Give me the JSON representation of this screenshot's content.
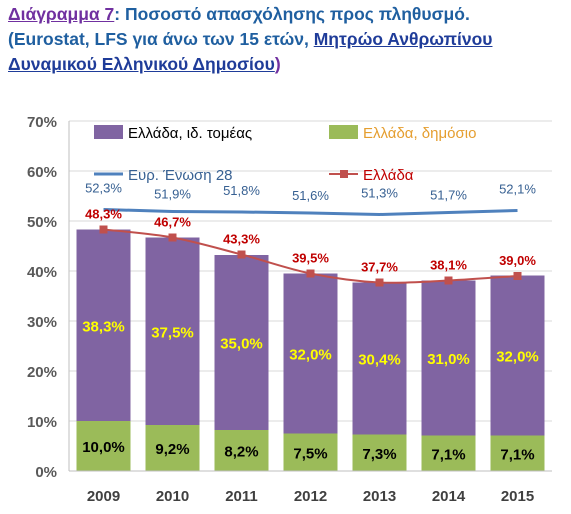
{
  "title": {
    "lead": "Διάγραμμα 7",
    "colon": ":",
    "rest": " Ποσοστό απασχόλησης προς πληθυσμό.",
    "line2_start": "(Eurostat, LFS για άνω των 15 ετών, ",
    "link": "Μητρώο Ανθρωπίνου Δυναμικού Ελληνικού Δημοσίου",
    "close": ")"
  },
  "colors": {
    "private": "#8064a2",
    "public": "#9bbb59",
    "eu": "#4f81bd",
    "greece": "#c0504d",
    "private_label": "#ffff00",
    "eu_label": "#376092",
    "greece_label": "#c00000"
  },
  "chart_data": {
    "type": "bar",
    "categories": [
      "2009",
      "2010",
      "2011",
      "2012",
      "2013",
      "2014",
      "2015"
    ],
    "ylim": [
      0,
      70
    ],
    "yticks": [
      "0%",
      "10%",
      "20%",
      "30%",
      "40%",
      "50%",
      "60%",
      "70%"
    ],
    "stacked": true,
    "grid": true,
    "series": [
      {
        "name": "Ελλάδα, δημόσιο",
        "kind": "bar",
        "values": [
          10.0,
          9.2,
          8.2,
          7.5,
          7.3,
          7.1,
          7.1
        ],
        "labels": [
          "10,0%",
          "9,2%",
          "8,2%",
          "7,5%",
          "7,3%",
          "7,1%",
          "7,1%"
        ]
      },
      {
        "name": "Ελλάδα, ιδ. τομέας",
        "kind": "bar",
        "values": [
          38.3,
          37.5,
          35.0,
          32.0,
          30.4,
          31.0,
          32.0
        ],
        "labels": [
          "38,3%",
          "37,5%",
          "35,0%",
          "32,0%",
          "30,4%",
          "31,0%",
          "32,0%"
        ]
      },
      {
        "name": "Ευρ. Ένωση 28",
        "kind": "line",
        "values": [
          52.3,
          51.9,
          51.8,
          51.6,
          51.3,
          51.7,
          52.1
        ],
        "labels": [
          "52,3%",
          "51,9%",
          "51,8%",
          "51,6%",
          "51,3%",
          "51,7%",
          "52,1%"
        ]
      },
      {
        "name": "Ελλάδα",
        "kind": "line",
        "values": [
          48.3,
          46.7,
          43.3,
          39.5,
          37.7,
          38.1,
          39.0
        ],
        "labels": [
          "48,3%",
          "46,7%",
          "43,3%",
          "39,5%",
          "37,7%",
          "38,1%",
          "39,0%"
        ]
      }
    ],
    "legend": [
      "Ελλάδα, ιδ. τομέας",
      "Ελλάδα, δημόσιο",
      "Ευρ. Ένωση 28",
      "Ελλάδα"
    ]
  }
}
